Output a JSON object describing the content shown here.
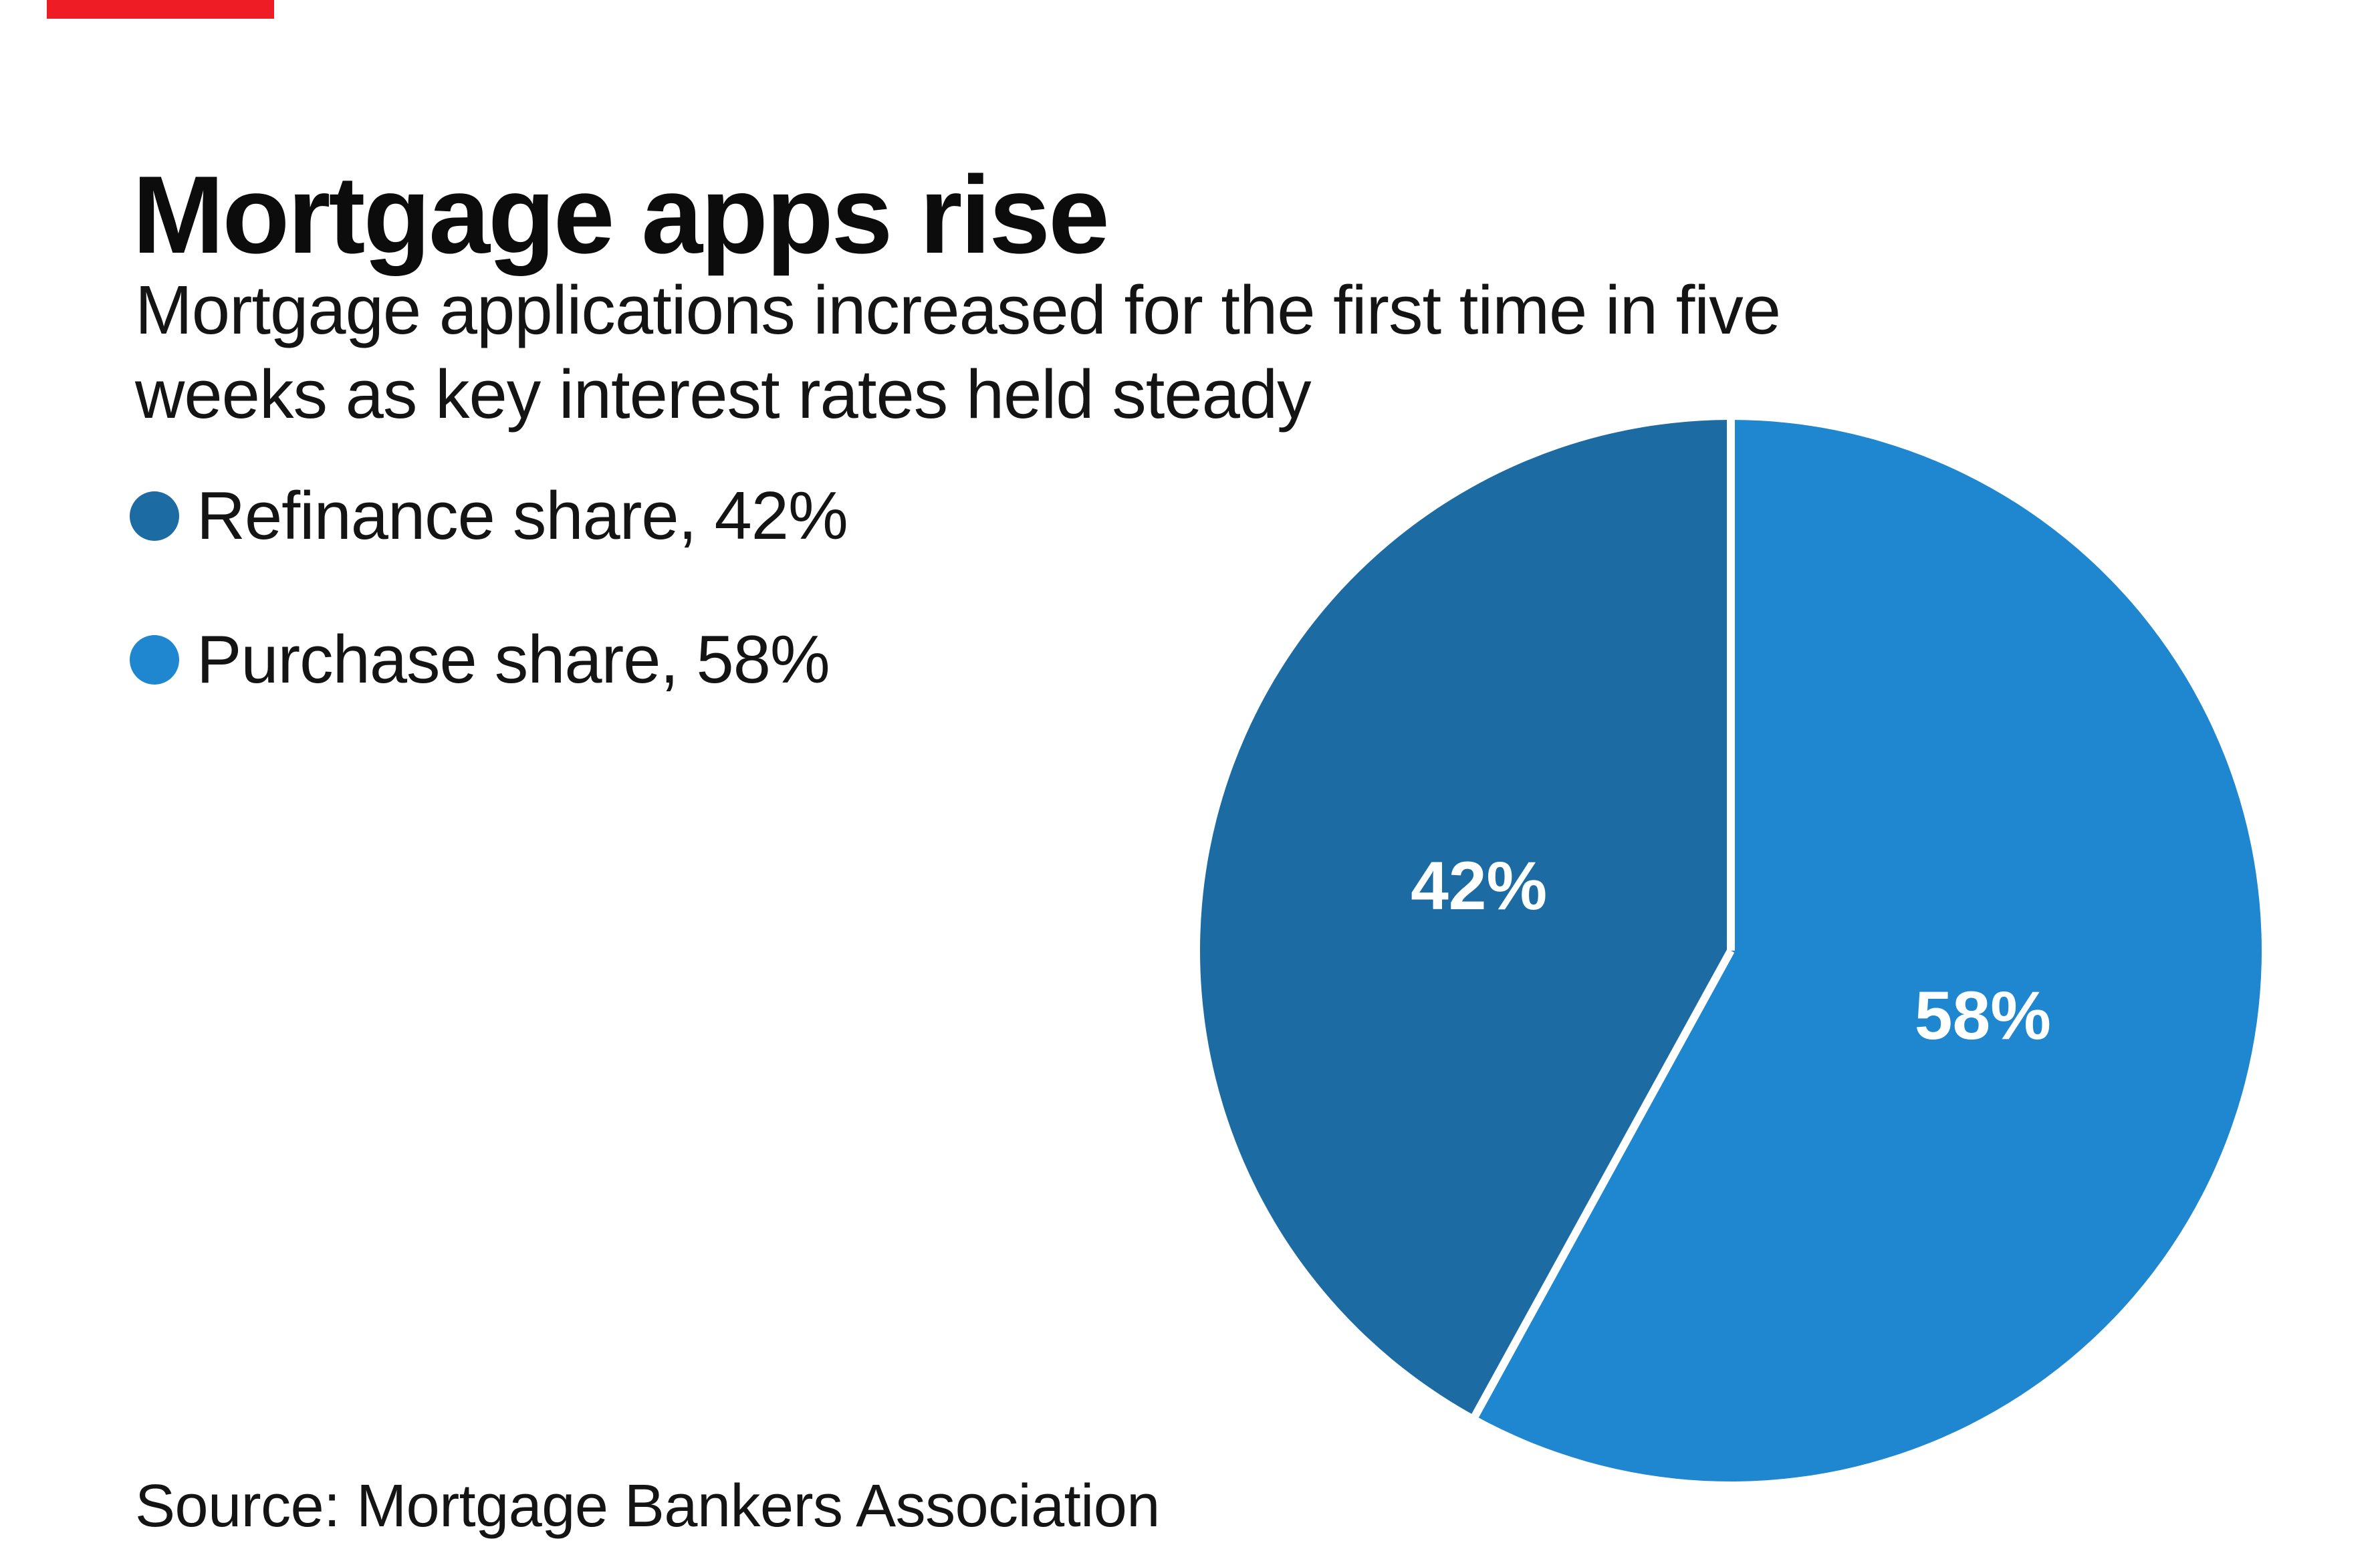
{
  "accent_bar_color": "#ee1c25",
  "header": {
    "title": "Mortgage apps rise",
    "subtitle": "Mortgage applications increased for the first time in five\nweeks as key interest rates held steady"
  },
  "legend": {
    "items": [
      {
        "label": "Refinance share, 42%",
        "color": "#1d6ba3"
      },
      {
        "label": "Purchase share, 58%",
        "color": "#1e87d0"
      }
    ]
  },
  "source": "Source: Mortgage Bankers Association",
  "chart_data": {
    "type": "pie",
    "title": "Mortgage apps rise",
    "slices": [
      {
        "name": "Purchase share",
        "value": 58,
        "label": "58%",
        "color": "#1e87d0"
      },
      {
        "name": "Refinance share",
        "value": 42,
        "label": "42%",
        "color": "#1d6ba3"
      }
    ],
    "start_angle_deg": 0,
    "direction": "clockwise-from-12-oclock",
    "divider_color": "#ffffff",
    "divider_width": 12,
    "label_color": "#ffffff",
    "label_radius_fraction": 0.49,
    "legend_position": "left"
  }
}
